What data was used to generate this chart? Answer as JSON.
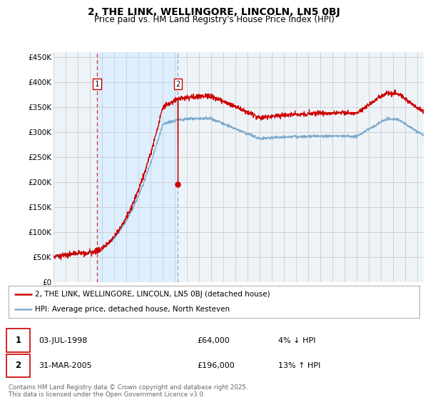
{
  "title": "2, THE LINK, WELLINGORE, LINCOLN, LN5 0BJ",
  "subtitle": "Price paid vs. HM Land Registry's House Price Index (HPI)",
  "ylabel_ticks": [
    "£0",
    "£50K",
    "£100K",
    "£150K",
    "£200K",
    "£250K",
    "£300K",
    "£350K",
    "£400K",
    "£450K"
  ],
  "ytick_values": [
    0,
    50000,
    100000,
    150000,
    200000,
    250000,
    300000,
    350000,
    400000,
    450000
  ],
  "ylim": [
    0,
    460000
  ],
  "xlim_start": 1995.0,
  "xlim_end": 2025.5,
  "red_line_color": "#cc0000",
  "blue_line_color": "#7eaacc",
  "shade_color": "#ddeeff",
  "marker1_x": 1998.58,
  "marker1_y": 64000,
  "marker2_x": 2005.25,
  "marker2_y": 196000,
  "vline1_x": 1998.58,
  "vline2_x": 2005.25,
  "legend_label_red": "2, THE LINK, WELLINGORE, LINCOLN, LN5 0BJ (detached house)",
  "legend_label_blue": "HPI: Average price, detached house, North Kesteven",
  "transaction1_date": "03-JUL-1998",
  "transaction1_price": "£64,000",
  "transaction1_hpi": "4% ↓ HPI",
  "transaction2_date": "31-MAR-2005",
  "transaction2_price": "£196,000",
  "transaction2_hpi": "13% ↑ HPI",
  "footer": "Contains HM Land Registry data © Crown copyright and database right 2025.\nThis data is licensed under the Open Government Licence v3.0.",
  "background_color": "#ffffff",
  "plot_bg_color": "#f0f4f8",
  "grid_color": "#cccccc",
  "title_fontsize": 10,
  "subtitle_fontsize": 8.5
}
